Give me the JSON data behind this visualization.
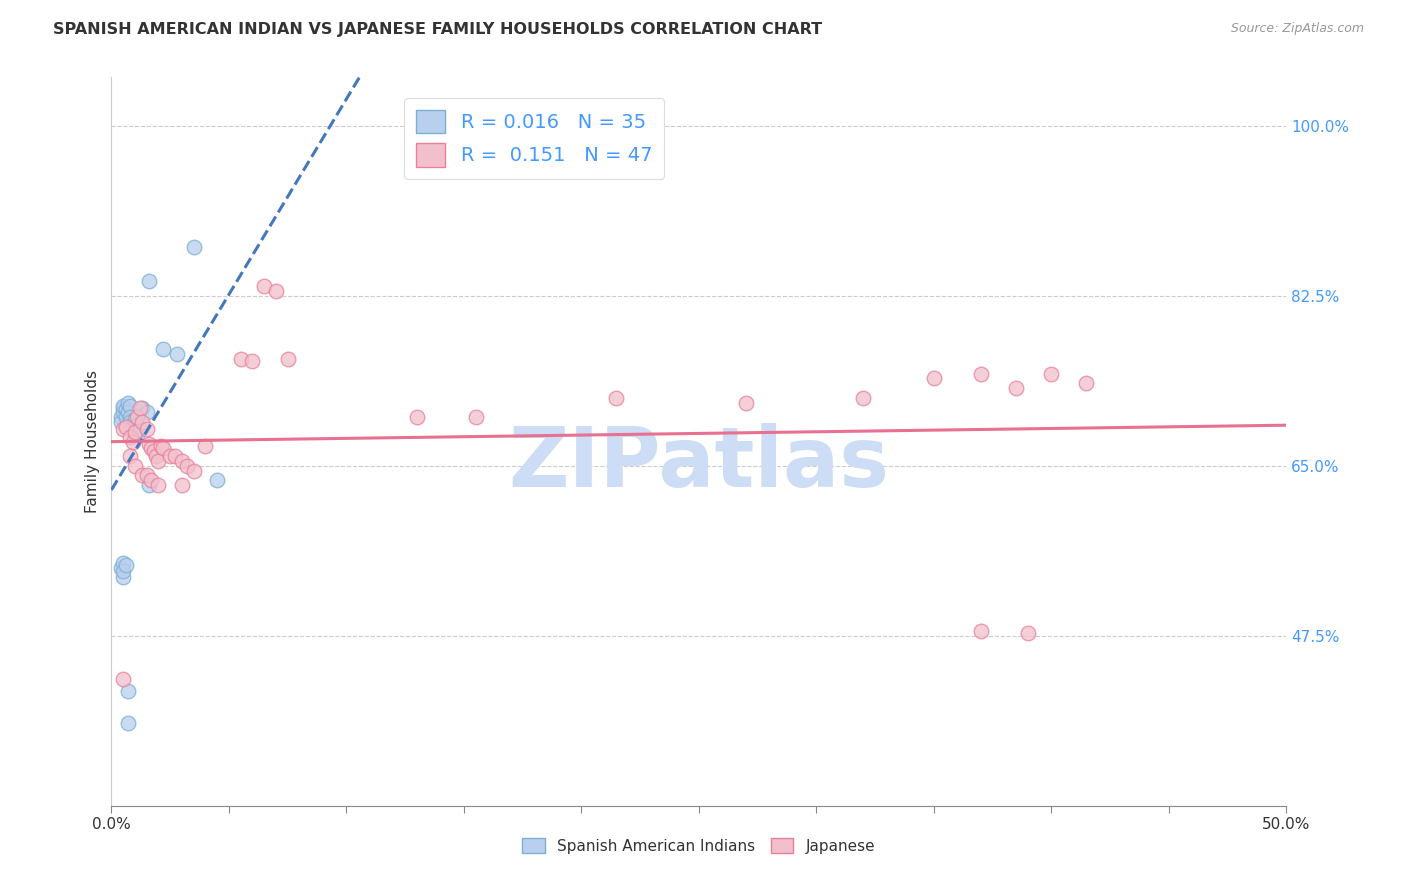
{
  "title": "SPANISH AMERICAN INDIAN VS JAPANESE FAMILY HOUSEHOLDS CORRELATION CHART",
  "source": "Source: ZipAtlas.com",
  "ylabel": "Family Households",
  "xlim": [
    0.0,
    0.5
  ],
  "ylim": [
    0.3,
    1.05
  ],
  "ytick_positions": [
    0.475,
    0.65,
    0.825,
    1.0
  ],
  "yticklabels": [
    "47.5%",
    "65.0%",
    "82.5%",
    "100.0%"
  ],
  "xtick_positions": [
    0.0,
    0.05,
    0.1,
    0.15,
    0.2,
    0.25,
    0.3,
    0.35,
    0.4,
    0.45,
    0.5
  ],
  "grid_color": "#cccccc",
  "background_color": "#ffffff",
  "blue_scatter": {
    "x": [
      0.004,
      0.004,
      0.005,
      0.005,
      0.005,
      0.006,
      0.006,
      0.007,
      0.007,
      0.008,
      0.008,
      0.008,
      0.009,
      0.009,
      0.01,
      0.01,
      0.01,
      0.011,
      0.011,
      0.012,
      0.013,
      0.015,
      0.016,
      0.022,
      0.028,
      0.035,
      0.004,
      0.005,
      0.005,
      0.005,
      0.006,
      0.016,
      0.045,
      0.007,
      0.007
    ],
    "y": [
      0.7,
      0.695,
      0.71,
      0.705,
      0.712,
      0.708,
      0.7,
      0.715,
      0.705,
      0.712,
      0.7,
      0.695,
      0.692,
      0.688,
      0.685,
      0.69,
      0.698,
      0.682,
      0.692,
      0.688,
      0.71,
      0.705,
      0.84,
      0.77,
      0.765,
      0.875,
      0.545,
      0.55,
      0.535,
      0.542,
      0.548,
      0.63,
      0.635,
      0.385,
      0.418
    ],
    "color": "#b8d0ed",
    "edgecolor": "#7bafd4",
    "size": 110,
    "alpha": 0.75,
    "R": 0.016,
    "N": 35
  },
  "pink_scatter": {
    "x": [
      0.005,
      0.006,
      0.008,
      0.009,
      0.01,
      0.011,
      0.012,
      0.013,
      0.015,
      0.016,
      0.017,
      0.018,
      0.019,
      0.02,
      0.021,
      0.022,
      0.025,
      0.027,
      0.03,
      0.032,
      0.035,
      0.04,
      0.055,
      0.06,
      0.065,
      0.07,
      0.075,
      0.008,
      0.01,
      0.013,
      0.015,
      0.017,
      0.02,
      0.03,
      0.13,
      0.155,
      0.215,
      0.27,
      0.32,
      0.35,
      0.37,
      0.385,
      0.4,
      0.415,
      0.37,
      0.39,
      0.005
    ],
    "y": [
      0.688,
      0.69,
      0.68,
      0.675,
      0.685,
      0.7,
      0.71,
      0.695,
      0.688,
      0.672,
      0.668,
      0.665,
      0.66,
      0.655,
      0.67,
      0.668,
      0.66,
      0.66,
      0.655,
      0.65,
      0.645,
      0.67,
      0.76,
      0.758,
      0.835,
      0.83,
      0.76,
      0.66,
      0.65,
      0.64,
      0.64,
      0.635,
      0.63,
      0.63,
      0.7,
      0.7,
      0.72,
      0.715,
      0.72,
      0.74,
      0.745,
      0.73,
      0.745,
      0.735,
      0.48,
      0.478,
      0.43
    ],
    "color": "#f2c0cc",
    "edgecolor": "#e8809a",
    "size": 110,
    "alpha": 0.75,
    "R": 0.151,
    "N": 47
  },
  "blue_line_color": "#4477bb",
  "pink_line_color": "#e87090",
  "blue_line_style": "--",
  "pink_line_style": "-",
  "legend_blue_label": "Spanish American Indians",
  "legend_pink_label": "Japanese",
  "watermark": "ZIPatlas",
  "watermark_color": "#ccddf5"
}
